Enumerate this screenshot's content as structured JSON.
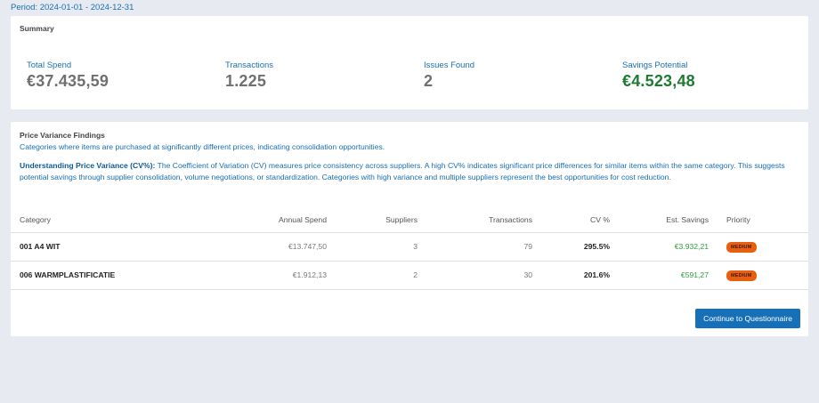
{
  "period": "Period: 2024-01-01 - 2024-12-31",
  "summary": {
    "title": "Summary",
    "stats": [
      {
        "label": "Total Spend",
        "value": "€37.435,59"
      },
      {
        "label": "Transactions",
        "value": "1.225"
      },
      {
        "label": "Issues Found",
        "value": "2"
      },
      {
        "label": "Savings Potential",
        "value": "€4.523,48"
      }
    ]
  },
  "findings": {
    "title": "Price Variance Findings",
    "description": "Categories where items are purchased at significantly different prices, indicating consolidation opportunities.",
    "understanding_title": "Understanding Price Variance (CV%):",
    "understanding_text": "The Coefficient of Variation (CV) measures price consistency across suppliers. A high CV% indicates significant price differences for similar items within the same category. This suggests potential savings through supplier consolidation, volume negotiations, or standardization. Categories with high variance and multiple suppliers represent the best opportunities for cost reduction.",
    "columns": [
      "Category",
      "Annual Spend",
      "Suppliers",
      "Transactions",
      "CV %",
      "Est. Savings",
      "Priority"
    ],
    "rows": [
      {
        "category": "001 A4 WIT",
        "annual_spend": "€13.747,50",
        "suppliers": "3",
        "transactions": "79",
        "cv": "295.5%",
        "savings": "€3.932,21",
        "priority": "MEDIUM"
      },
      {
        "category": "006 WARMPLASTIFICATIE",
        "annual_spend": "€1.912,13",
        "suppliers": "2",
        "transactions": "30",
        "cv": "201.6%",
        "savings": "€591,27",
        "priority": "MEDIUM"
      }
    ],
    "continue_button": "Continue to Questionnaire"
  },
  "colors": {
    "accent": "#1a6fb0",
    "savings_green": "#1e7b32",
    "priority_medium": "#e8600f",
    "button": "#1670b8"
  }
}
